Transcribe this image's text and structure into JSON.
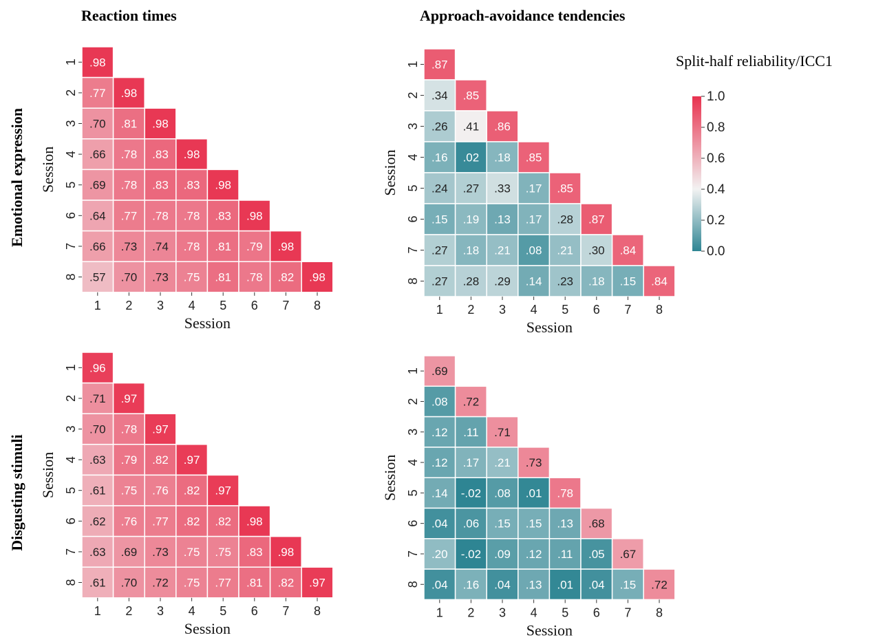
{
  "column_titles": [
    "Reaction times",
    "Approach-avoidance tendencies"
  ],
  "row_titles": [
    "Emotional expression",
    "Disgusting stimuli"
  ],
  "colorbar": {
    "title": "Split-half reliability/ICC1",
    "ticks": [
      "1.0",
      "0.8",
      "0.6",
      "0.4",
      "0.2",
      "0.0"
    ],
    "tick_values": [
      1.0,
      0.8,
      0.6,
      0.4,
      0.2,
      0.0
    ],
    "low_color": "#2e8593",
    "mid_color": "#f2f2f2",
    "high_color": "#e8324f"
  },
  "chart_data": [
    {
      "type": "heatmap",
      "panel": "top-left",
      "xlabel": "Session",
      "ylabel": "Session",
      "x_ticks": [
        "1",
        "2",
        "3",
        "4",
        "5",
        "6",
        "7",
        "8"
      ],
      "y_ticks": [
        "1",
        "2",
        "3",
        "4",
        "5",
        "6",
        "7",
        "8"
      ],
      "vmin": 0,
      "vmax": 1,
      "rows": [
        [
          0.98
        ],
        [
          0.77,
          0.98
        ],
        [
          0.7,
          0.81,
          0.98
        ],
        [
          0.66,
          0.78,
          0.83,
          0.98
        ],
        [
          0.69,
          0.78,
          0.83,
          0.83,
          0.98
        ],
        [
          0.64,
          0.77,
          0.78,
          0.78,
          0.83,
          0.98
        ],
        [
          0.66,
          0.73,
          0.74,
          0.78,
          0.81,
          0.79,
          0.98
        ],
        [
          0.57,
          0.7,
          0.73,
          0.75,
          0.81,
          0.78,
          0.82,
          0.98
        ]
      ],
      "labels": [
        [
          ".98"
        ],
        [
          ".77",
          ".98"
        ],
        [
          ".70",
          ".81",
          ".98"
        ],
        [
          ".66",
          ".78",
          ".83",
          ".98"
        ],
        [
          ".69",
          ".78",
          ".83",
          ".83",
          ".98"
        ],
        [
          ".64",
          ".77",
          ".78",
          ".78",
          ".83",
          ".98"
        ],
        [
          ".66",
          ".73",
          ".74",
          ".78",
          ".81",
          ".79",
          ".98"
        ],
        [
          ".57",
          ".70",
          ".73",
          ".75",
          ".81",
          ".78",
          ".82",
          ".98"
        ]
      ]
    },
    {
      "type": "heatmap",
      "panel": "top-right",
      "xlabel": "Session",
      "ylabel": "Session",
      "x_ticks": [
        "1",
        "2",
        "3",
        "4",
        "5",
        "6",
        "7",
        "8"
      ],
      "y_ticks": [
        "1",
        "2",
        "3",
        "4",
        "5",
        "6",
        "7",
        "8"
      ],
      "vmin": 0,
      "vmax": 1,
      "rows": [
        [
          0.87
        ],
        [
          0.34,
          0.85
        ],
        [
          0.26,
          0.41,
          0.86
        ],
        [
          0.16,
          0.02,
          0.18,
          0.85
        ],
        [
          0.24,
          0.27,
          0.33,
          0.17,
          0.85
        ],
        [
          0.15,
          0.19,
          0.13,
          0.17,
          0.28,
          0.87
        ],
        [
          0.27,
          0.18,
          0.21,
          0.08,
          0.21,
          0.3,
          0.84
        ],
        [
          0.27,
          0.28,
          0.29,
          0.14,
          0.23,
          0.18,
          0.15,
          0.84
        ]
      ],
      "labels": [
        [
          ".87"
        ],
        [
          ".34",
          ".85"
        ],
        [
          ".26",
          ".41",
          ".86"
        ],
        [
          ".16",
          ".02",
          ".18",
          ".85"
        ],
        [
          ".24",
          ".27",
          ".33",
          ".17",
          ".85"
        ],
        [
          ".15",
          ".19",
          ".13",
          ".17",
          ".28",
          ".87"
        ],
        [
          ".27",
          ".18",
          ".21",
          ".08",
          ".21",
          ".30",
          ".84"
        ],
        [
          ".27",
          ".28",
          ".29",
          ".14",
          ".23",
          ".18",
          ".15",
          ".84"
        ]
      ]
    },
    {
      "type": "heatmap",
      "panel": "bottom-left",
      "xlabel": "Session",
      "ylabel": "Session",
      "x_ticks": [
        "1",
        "2",
        "3",
        "4",
        "5",
        "6",
        "7",
        "8"
      ],
      "y_ticks": [
        "1",
        "2",
        "3",
        "4",
        "5",
        "6",
        "7",
        "8"
      ],
      "vmin": 0,
      "vmax": 1,
      "rows": [
        [
          0.96
        ],
        [
          0.71,
          0.97
        ],
        [
          0.7,
          0.78,
          0.97
        ],
        [
          0.63,
          0.79,
          0.82,
          0.97
        ],
        [
          0.61,
          0.75,
          0.76,
          0.82,
          0.97
        ],
        [
          0.62,
          0.76,
          0.77,
          0.82,
          0.82,
          0.98
        ],
        [
          0.63,
          0.69,
          0.73,
          0.75,
          0.75,
          0.83,
          0.98
        ],
        [
          0.61,
          0.7,
          0.72,
          0.75,
          0.77,
          0.81,
          0.82,
          0.97
        ]
      ],
      "labels": [
        [
          ".96"
        ],
        [
          ".71",
          ".97"
        ],
        [
          ".70",
          ".78",
          ".97"
        ],
        [
          ".63",
          ".79",
          ".82",
          ".97"
        ],
        [
          ".61",
          ".75",
          ".76",
          ".82",
          ".97"
        ],
        [
          ".62",
          ".76",
          ".77",
          ".82",
          ".82",
          ".98"
        ],
        [
          ".63",
          ".69",
          ".73",
          ".75",
          ".75",
          ".83",
          ".98"
        ],
        [
          ".61",
          ".70",
          ".72",
          ".75",
          ".77",
          ".81",
          ".82",
          ".97"
        ]
      ]
    },
    {
      "type": "heatmap",
      "panel": "bottom-right",
      "xlabel": "Session",
      "ylabel": "Session",
      "x_ticks": [
        "1",
        "2",
        "3",
        "4",
        "5",
        "6",
        "7",
        "8"
      ],
      "y_ticks": [
        "1",
        "2",
        "3",
        "4",
        "5",
        "6",
        "7",
        "8"
      ],
      "vmin": 0,
      "vmax": 1,
      "rows": [
        [
          0.69
        ],
        [
          0.08,
          0.72
        ],
        [
          0.12,
          0.11,
          0.71
        ],
        [
          0.12,
          0.17,
          0.21,
          0.73
        ],
        [
          0.14,
          -0.02,
          0.08,
          0.01,
          0.78
        ],
        [
          0.04,
          0.06,
          0.15,
          0.15,
          0.13,
          0.68
        ],
        [
          0.2,
          -0.02,
          0.09,
          0.12,
          0.11,
          0.05,
          0.67
        ],
        [
          0.04,
          0.16,
          0.04,
          0.13,
          0.01,
          0.04,
          0.15,
          0.72
        ]
      ],
      "labels": [
        [
          ".69"
        ],
        [
          ".08",
          ".72"
        ],
        [
          ".12",
          ".11",
          ".71"
        ],
        [
          ".12",
          ".17",
          ".21",
          ".73"
        ],
        [
          ".14",
          "-.02",
          ".08",
          ".01",
          ".78"
        ],
        [
          ".04",
          ".06",
          ".15",
          ".15",
          ".13",
          ".68"
        ],
        [
          ".20",
          "-.02",
          ".09",
          ".12",
          ".11",
          ".05",
          ".67"
        ],
        [
          ".04",
          ".16",
          ".04",
          ".13",
          ".01",
          ".04",
          ".15",
          ".72"
        ]
      ]
    }
  ]
}
